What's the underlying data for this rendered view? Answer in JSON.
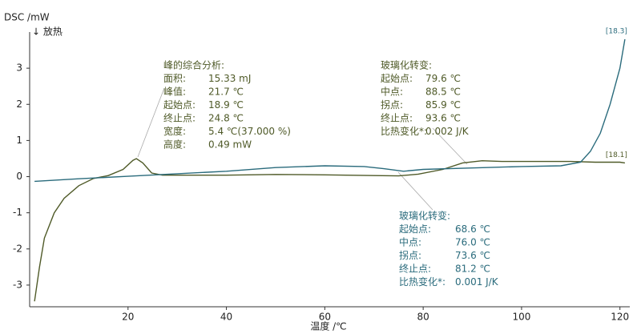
{
  "chart_data": {
    "type": "line",
    "y_label": "DSC /mW",
    "y_sublabel": "↓ 放热",
    "x_label": "温度 /℃",
    "xlim": [
      0,
      122
    ],
    "ylim": [
      -3.6,
      4.0
    ],
    "xticks": [
      20,
      40,
      60,
      80,
      100,
      120
    ],
    "yticks": [
      -3,
      -2,
      -1,
      0,
      1,
      2,
      3
    ],
    "series": [
      {
        "name": "[18.1]",
        "color": "#4f5a28",
        "x": [
          1,
          2,
          3,
          5,
          7,
          10,
          13,
          16,
          19,
          21,
          21.7,
          23,
          24.8,
          27,
          30,
          40,
          50,
          60,
          70,
          75,
          79,
          84,
          88,
          92,
          96,
          100,
          110,
          115,
          120,
          121
        ],
        "values": [
          -3.45,
          -2.5,
          -1.7,
          -1.0,
          -0.6,
          -0.25,
          -0.05,
          0.03,
          0.2,
          0.45,
          0.5,
          0.38,
          0.1,
          0.04,
          0.04,
          0.04,
          0.06,
          0.05,
          0.03,
          0.02,
          0.07,
          0.2,
          0.38,
          0.44,
          0.42,
          0.42,
          0.42,
          0.4,
          0.4,
          0.38
        ]
      },
      {
        "name": "[18.3]",
        "color": "#2a6b7c",
        "x": [
          1,
          10,
          20,
          30,
          40,
          50,
          60,
          68,
          72,
          76,
          80,
          90,
          100,
          108,
          112,
          114,
          116,
          118,
          120,
          121
        ],
        "values": [
          -0.13,
          -0.06,
          0.01,
          0.08,
          0.15,
          0.25,
          0.3,
          0.28,
          0.22,
          0.15,
          0.2,
          0.24,
          0.28,
          0.3,
          0.4,
          0.7,
          1.2,
          2.0,
          3.0,
          3.8
        ]
      }
    ],
    "annotations": [
      {
        "title": "峰的综合分析:",
        "color": "#4f5a28",
        "rows": [
          [
            "面积:",
            "15.33 mJ"
          ],
          [
            "峰值:",
            "21.7 ℃"
          ],
          [
            "起始点:",
            "18.9 ℃"
          ],
          [
            "终止点:",
            "24.8 ℃"
          ],
          [
            "宽度:",
            "5.4 ℃(37.000 %)"
          ],
          [
            "高度:",
            "0.49 mW"
          ]
        ]
      },
      {
        "title": "玻璃化转变:",
        "color": "#4f5a28",
        "rows": [
          [
            "起始点:",
            "79.6 ℃"
          ],
          [
            "中点:",
            "88.5 ℃"
          ],
          [
            "拐点:",
            "85.9 ℃"
          ],
          [
            "终止点:",
            "93.6 ℃"
          ],
          [
            "比热变化*:",
            "0.002 J/K"
          ]
        ]
      },
      {
        "title": "玻璃化转变:",
        "color": "#2a6b7c",
        "rows": [
          [
            "起始点:",
            "68.6 ℃"
          ],
          [
            "中点:",
            "76.0 ℃"
          ],
          [
            "拐点:",
            "73.6 ℃"
          ],
          [
            "终止点:",
            "81.2 ℃"
          ],
          [
            "比热变化*:",
            "0.001 J/K"
          ]
        ]
      }
    ]
  }
}
